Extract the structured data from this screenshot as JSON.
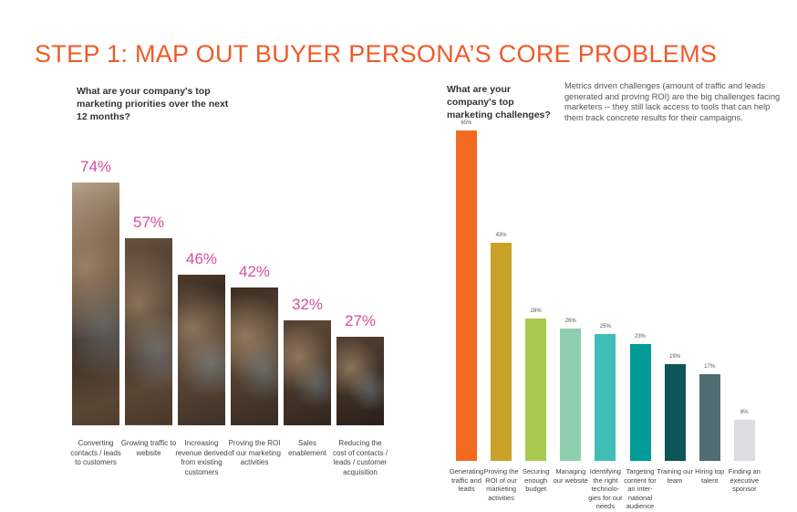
{
  "title": "STEP 1: MAP OUT BUYER PERSONA’S CORE PROBLEMS",
  "chart_data": [
    {
      "type": "bar",
      "title": "What are your company's top marketing priorities over the next 12 months?",
      "categories": [
        "Converting contacts / leads to customers",
        "Growing traffic to website",
        "Increasing revenue derived from existing customers",
        "Proving the ROI of our marketing activities",
        "Sales enablement",
        "Reducing the cost of contacts / leads / customer acquisition"
      ],
      "values": [
        74,
        57,
        46,
        42,
        32,
        27
      ],
      "value_labels": [
        "74%",
        "57%",
        "46%",
        "42%",
        "32%",
        "27%"
      ],
      "label_color": "#d94b9e",
      "ylim": [
        0,
        74
      ],
      "grid": false
    },
    {
      "type": "bar",
      "title": "What are your company's top marketing challenges?",
      "description": "Metrics driven challenges (amount of traffic and leads generated and proving ROI) are the big challenges facing marketers -- they still lack access to tools that can help them track concrete results for their campaigns.",
      "categories": [
        "Generating traffic and leads",
        "Proving the ROI of our marketing activities",
        "Securing enough budget",
        "Managing our website",
        "Identifying the right technolo- gies for our needs",
        "Targeting content for an inter- national audience",
        "Training our team",
        "Hiring top talent",
        "Finding an executive sponsor"
      ],
      "values": [
        65,
        43,
        28,
        26,
        25,
        23,
        19,
        17,
        8
      ],
      "value_labels": [
        "65%",
        "43%",
        "28%",
        "26%",
        "25%",
        "23%",
        "19%",
        "17%",
        "8%"
      ],
      "colors": [
        "#f26a1f",
        "#c9a227",
        "#a9c94f",
        "#8fcfb0",
        "#41bdb8",
        "#009a98",
        "#0e5558",
        "#506e72",
        "#dcdddf"
      ],
      "ylim": [
        0,
        65
      ],
      "grid": false
    }
  ]
}
